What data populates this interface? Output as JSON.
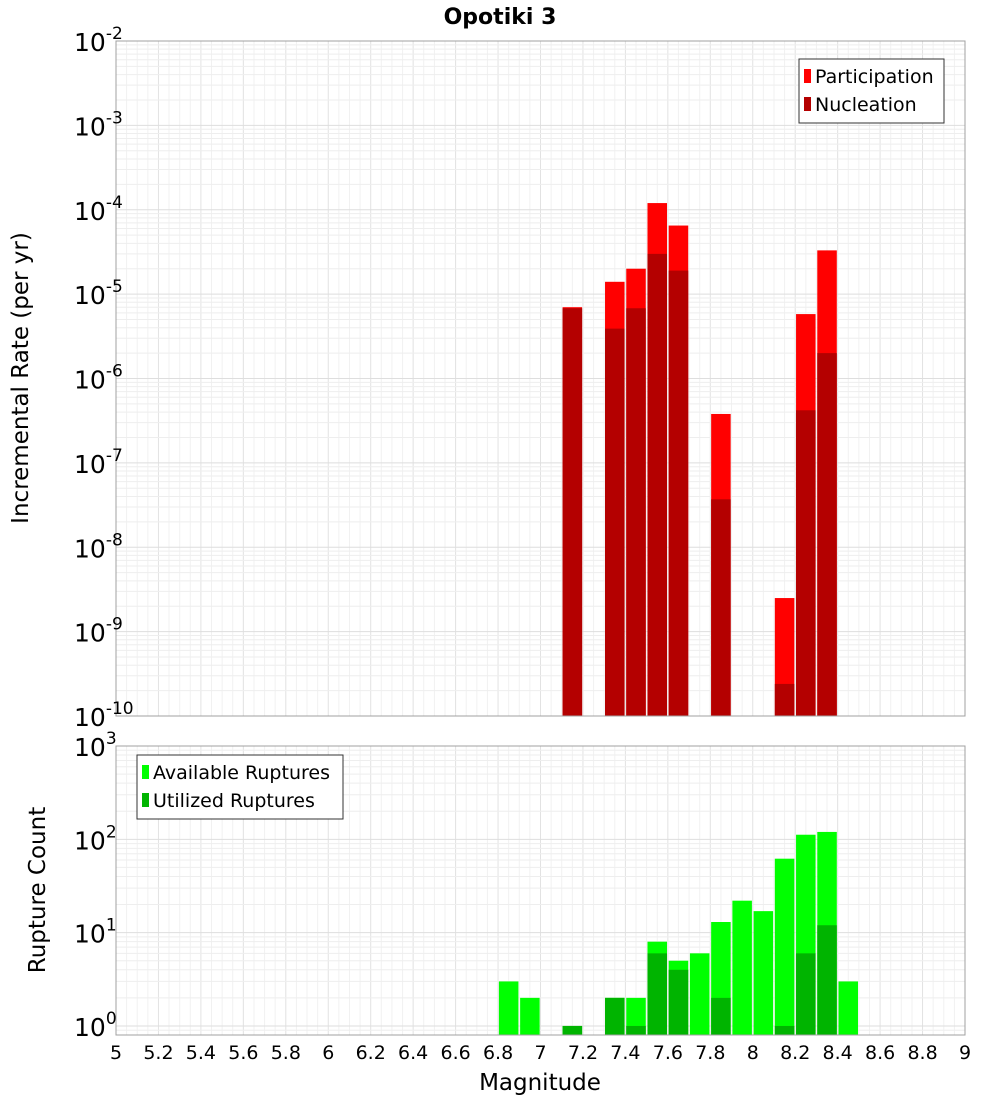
{
  "chart_data": [
    {
      "type": "bar",
      "title": "Opotiki 3",
      "xlabel": "",
      "ylabel": "Incremental Rate (per yr)",
      "yscale": "log",
      "xlim": [
        5,
        9
      ],
      "ylim": [
        1e-10,
        0.01
      ],
      "y_ticks": [
        {
          "base": "10",
          "exp": "-10"
        },
        {
          "base": "10",
          "exp": "-9"
        },
        {
          "base": "10",
          "exp": "-8"
        },
        {
          "base": "10",
          "exp": "-7"
        },
        {
          "base": "10",
          "exp": "-6"
        },
        {
          "base": "10",
          "exp": "-5"
        },
        {
          "base": "10",
          "exp": "-4"
        },
        {
          "base": "10",
          "exp": "-3"
        },
        {
          "base": "10",
          "exp": "-2"
        }
      ],
      "grid": true,
      "legend_position": "top-right",
      "series": [
        {
          "name": "Participation",
          "color": "#ff0000",
          "points": [
            {
              "x": 7.15,
              "y": 7e-06
            },
            {
              "x": 7.35,
              "y": 1.4e-05
            },
            {
              "x": 7.45,
              "y": 2e-05
            },
            {
              "x": 7.55,
              "y": 0.00012
            },
            {
              "x": 7.65,
              "y": 6.5e-05
            },
            {
              "x": 7.85,
              "y": 3.8e-07
            },
            {
              "x": 8.15,
              "y": 2.5e-09
            },
            {
              "x": 8.25,
              "y": 5.8e-06
            },
            {
              "x": 8.35,
              "y": 3.3e-05
            }
          ]
        },
        {
          "name": "Nucleation",
          "color": "#b40000",
          "points": [
            {
              "x": 7.15,
              "y": 6.8e-06
            },
            {
              "x": 7.35,
              "y": 3.9e-06
            },
            {
              "x": 7.45,
              "y": 6.8e-06
            },
            {
              "x": 7.55,
              "y": 3e-05
            },
            {
              "x": 7.65,
              "y": 1.9e-05
            },
            {
              "x": 7.85,
              "y": 3.7e-08
            },
            {
              "x": 8.15,
              "y": 2.4e-10
            },
            {
              "x": 8.25,
              "y": 4.2e-07
            },
            {
              "x": 8.35,
              "y": 2e-06
            }
          ]
        }
      ]
    },
    {
      "type": "bar",
      "xlabel": "Magnitude",
      "ylabel": "Rupture Count",
      "yscale": "log",
      "xlim": [
        5,
        9
      ],
      "ylim": [
        0.8,
        1000
      ],
      "x_ticks": [
        "5",
        "5.2",
        "5.4",
        "5.6",
        "5.8",
        "6",
        "6.2",
        "6.4",
        "6.6",
        "6.8",
        "7",
        "7.2",
        "7.4",
        "7.6",
        "7.8",
        "8",
        "8.2",
        "8.4",
        "8.6",
        "8.8",
        "9"
      ],
      "y_ticks": [
        {
          "base": "10",
          "exp": "0"
        },
        {
          "base": "10",
          "exp": "1"
        },
        {
          "base": "10",
          "exp": "2"
        },
        {
          "base": "10",
          "exp": "3"
        }
      ],
      "grid": true,
      "legend_position": "top-left",
      "series": [
        {
          "name": "Available Ruptures",
          "color": "#00ff00",
          "points": [
            {
              "x": 6.85,
              "y": 3
            },
            {
              "x": 6.95,
              "y": 2
            },
            {
              "x": 7.15,
              "y": 1
            },
            {
              "x": 7.35,
              "y": 2
            },
            {
              "x": 7.45,
              "y": 2
            },
            {
              "x": 7.55,
              "y": 8
            },
            {
              "x": 7.65,
              "y": 5
            },
            {
              "x": 7.75,
              "y": 6
            },
            {
              "x": 7.85,
              "y": 13
            },
            {
              "x": 7.95,
              "y": 22
            },
            {
              "x": 8.05,
              "y": 17
            },
            {
              "x": 8.15,
              "y": 62
            },
            {
              "x": 8.25,
              "y": 112
            },
            {
              "x": 8.35,
              "y": 120
            },
            {
              "x": 8.45,
              "y": 3
            }
          ]
        },
        {
          "name": "Utilized Ruptures",
          "color": "#00b400",
          "points": [
            {
              "x": 7.15,
              "y": 1
            },
            {
              "x": 7.35,
              "y": 2
            },
            {
              "x": 7.45,
              "y": 1
            },
            {
              "x": 7.55,
              "y": 6
            },
            {
              "x": 7.65,
              "y": 4
            },
            {
              "x": 7.85,
              "y": 2
            },
            {
              "x": 8.15,
              "y": 1
            },
            {
              "x": 8.25,
              "y": 6
            },
            {
              "x": 8.35,
              "y": 12
            }
          ]
        }
      ]
    }
  ]
}
